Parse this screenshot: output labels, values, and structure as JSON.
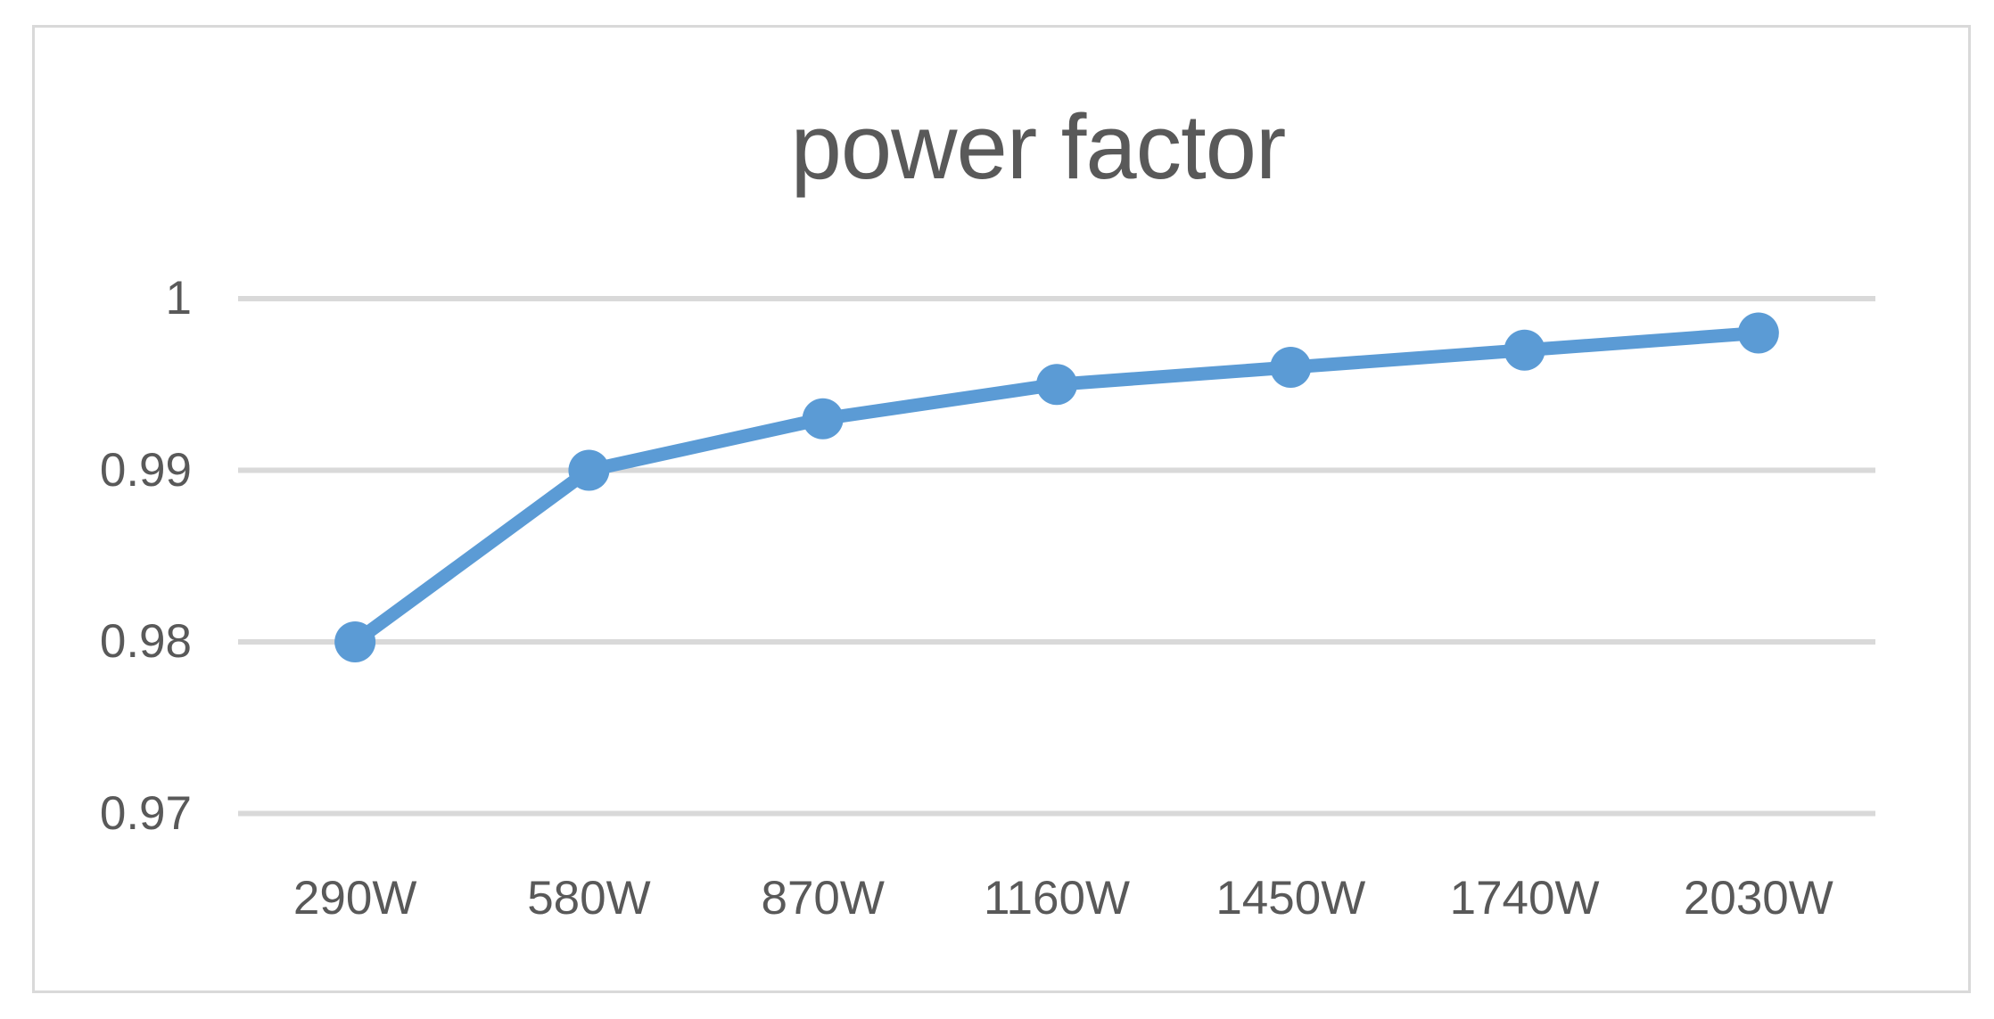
{
  "title": "power factor",
  "colors": {
    "series_line": "#5b9bd5",
    "gridline": "#d9d9d9",
    "frame_border": "#d9d9d9",
    "text": "#595959",
    "background": "#ffffff"
  },
  "chart_data": {
    "type": "line",
    "title": "power factor",
    "categories": [
      "290W",
      "580W",
      "870W",
      "1160W",
      "1450W",
      "1740W",
      "2030W"
    ],
    "series": [
      {
        "name": "power factor",
        "values": [
          0.98,
          0.99,
          0.993,
          0.995,
          0.996,
          0.997,
          0.998
        ]
      }
    ],
    "xlabel": "",
    "ylabel": "",
    "ylim": [
      0.97,
      1.0
    ],
    "yticks": [
      1.0,
      0.99,
      0.98,
      0.97
    ],
    "ytick_labels": [
      "1",
      "0.99",
      "0.98",
      "0.97"
    ],
    "grid": true,
    "legend": false,
    "marker": "circle"
  }
}
